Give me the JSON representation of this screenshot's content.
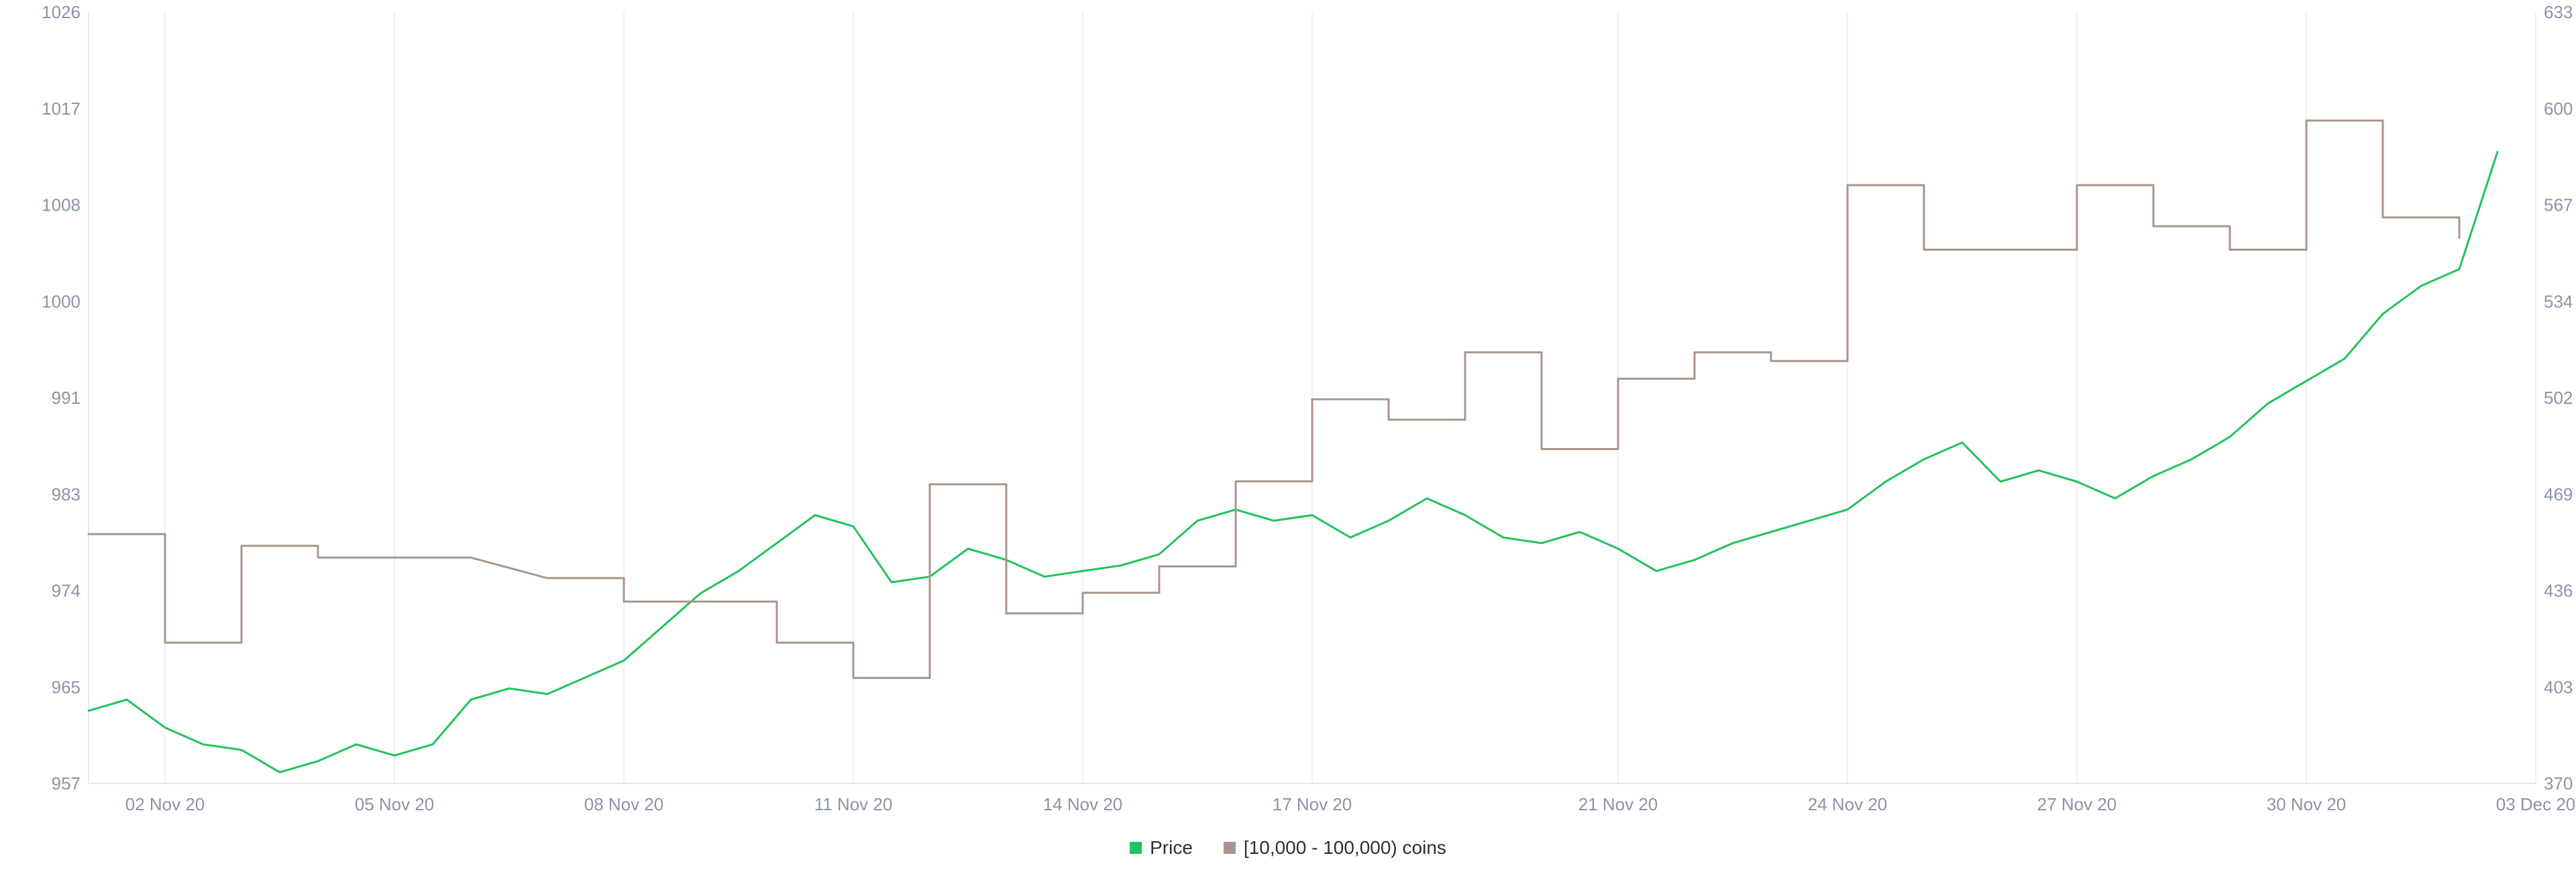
{
  "chart_data": {
    "type": "line",
    "title": "",
    "x_ticks": [
      "02 Nov 20",
      "05 Nov 20",
      "08 Nov 20",
      "11 Nov 20",
      "14 Nov 20",
      "17 Nov 20",
      "21 Nov 20",
      "24 Nov 20",
      "27 Nov 20",
      "30 Nov 20",
      "03 Dec 20"
    ],
    "x_range": [
      "2020-11-01",
      "2020-12-03"
    ],
    "y_left": {
      "ticks": [
        "1026",
        "1017",
        "1008",
        "1000",
        "991",
        "983",
        "974",
        "965",
        "957"
      ],
      "ylim": [
        957,
        1026
      ]
    },
    "y_right": {
      "ticks": [
        "633",
        "600",
        "567",
        "534",
        "502",
        "469",
        "436",
        "403",
        "370"
      ],
      "ylim": [
        370,
        633
      ]
    },
    "grid": {
      "horizontal": false,
      "vertical": true
    },
    "legend_position": "bottom-center",
    "series": [
      {
        "name": "Price",
        "axis": "left",
        "color": "#21c35a",
        "style": "line",
        "points": [
          [
            "2020-11-01",
            963.5
          ],
          [
            "2020-11-01 12:00",
            964.5
          ],
          [
            "2020-11-02",
            962.0
          ],
          [
            "2020-11-02 12:00",
            960.5
          ],
          [
            "2020-11-03",
            960.0
          ],
          [
            "2020-11-03 12:00",
            958.0
          ],
          [
            "2020-11-04",
            959.0
          ],
          [
            "2020-11-04 12:00",
            960.5
          ],
          [
            "2020-11-05",
            959.5
          ],
          [
            "2020-11-05 12:00",
            960.5
          ],
          [
            "2020-11-06",
            964.5
          ],
          [
            "2020-11-06 12:00",
            965.5
          ],
          [
            "2020-11-07",
            965.0
          ],
          [
            "2020-11-07 12:00",
            966.5
          ],
          [
            "2020-11-08",
            968.0
          ],
          [
            "2020-11-08 12:00",
            971.0
          ],
          [
            "2020-11-09",
            974.0
          ],
          [
            "2020-11-09 12:00",
            976.0
          ],
          [
            "2020-11-10",
            978.5
          ],
          [
            "2020-11-10 12:00",
            981.0
          ],
          [
            "2020-11-11",
            980.0
          ],
          [
            "2020-11-11 12:00",
            975.0
          ],
          [
            "2020-11-12",
            975.5
          ],
          [
            "2020-11-12 12:00",
            978.0
          ],
          [
            "2020-11-13",
            977.0
          ],
          [
            "2020-11-13 12:00",
            975.5
          ],
          [
            "2020-11-14",
            976.0
          ],
          [
            "2020-11-14 12:00",
            976.5
          ],
          [
            "2020-11-15",
            977.5
          ],
          [
            "2020-11-15 12:00",
            980.5
          ],
          [
            "2020-11-16",
            981.5
          ],
          [
            "2020-11-16 12:00",
            980.5
          ],
          [
            "2020-11-17",
            981.0
          ],
          [
            "2020-11-17 12:00",
            979.0
          ],
          [
            "2020-11-18",
            980.5
          ],
          [
            "2020-11-18 12:00",
            982.5
          ],
          [
            "2020-11-19",
            981.0
          ],
          [
            "2020-11-19 12:00",
            979.0
          ],
          [
            "2020-11-20",
            978.5
          ],
          [
            "2020-11-20 12:00",
            979.5
          ],
          [
            "2020-11-21",
            978.0
          ],
          [
            "2020-11-21 12:00",
            976.0
          ],
          [
            "2020-11-22",
            977.0
          ],
          [
            "2020-11-22 12:00",
            978.5
          ],
          [
            "2020-11-23",
            979.5
          ],
          [
            "2020-11-23 12:00",
            980.5
          ],
          [
            "2020-11-24",
            981.5
          ],
          [
            "2020-11-24 12:00",
            984.0
          ],
          [
            "2020-11-25",
            986.0
          ],
          [
            "2020-11-25 12:00",
            987.5
          ],
          [
            "2020-11-26",
            984.0
          ],
          [
            "2020-11-26 12:00",
            985.0
          ],
          [
            "2020-11-27",
            984.0
          ],
          [
            "2020-11-27 12:00",
            982.5
          ],
          [
            "2020-11-28",
            984.5
          ],
          [
            "2020-11-28 12:00",
            986.0
          ],
          [
            "2020-11-29",
            988.0
          ],
          [
            "2020-11-29 12:00",
            991.0
          ],
          [
            "2020-11-30",
            993.0
          ],
          [
            "2020-11-30 12:00",
            995.0
          ],
          [
            "2020-12-01",
            999.0
          ],
          [
            "2020-12-01 12:00",
            1001.5
          ],
          [
            "2020-12-02",
            1003.0
          ],
          [
            "2020-12-02 12:00",
            1013.5
          ]
        ]
      },
      {
        "name": "[10,000 - 100,000) coins",
        "axis": "right",
        "color": "#a9958b",
        "style": "step",
        "points": [
          [
            "2020-11-01",
            455
          ],
          [
            "2020-11-02",
            455
          ],
          [
            "2020-11-02",
            418
          ],
          [
            "2020-11-03",
            418
          ],
          [
            "2020-11-03",
            451
          ],
          [
            "2020-11-04",
            451
          ],
          [
            "2020-11-04",
            447
          ],
          [
            "2020-11-06",
            447
          ],
          [
            "2020-11-07",
            440
          ],
          [
            "2020-11-08",
            440
          ],
          [
            "2020-11-08",
            432
          ],
          [
            "2020-11-10",
            432
          ],
          [
            "2020-11-10",
            418
          ],
          [
            "2020-11-11",
            418
          ],
          [
            "2020-11-11",
            406
          ],
          [
            "2020-11-12",
            406
          ],
          [
            "2020-11-12",
            472
          ],
          [
            "2020-11-13",
            472
          ],
          [
            "2020-11-13",
            428
          ],
          [
            "2020-11-14",
            428
          ],
          [
            "2020-11-14",
            435
          ],
          [
            "2020-11-15",
            435
          ],
          [
            "2020-11-15",
            444
          ],
          [
            "2020-11-16",
            444
          ],
          [
            "2020-11-16",
            473
          ],
          [
            "2020-11-17",
            473
          ],
          [
            "2020-11-17",
            501
          ],
          [
            "2020-11-18",
            501
          ],
          [
            "2020-11-18",
            494
          ],
          [
            "2020-11-19",
            494
          ],
          [
            "2020-11-19",
            517
          ],
          [
            "2020-11-20",
            517
          ],
          [
            "2020-11-20",
            484
          ],
          [
            "2020-11-21",
            484
          ],
          [
            "2020-11-21",
            508
          ],
          [
            "2020-11-22",
            508
          ],
          [
            "2020-11-22",
            517
          ],
          [
            "2020-11-23",
            517
          ],
          [
            "2020-11-23",
            514
          ],
          [
            "2020-11-24",
            514
          ],
          [
            "2020-11-24",
            574
          ],
          [
            "2020-11-25",
            574
          ],
          [
            "2020-11-25",
            552
          ],
          [
            "2020-11-27",
            552
          ],
          [
            "2020-11-27",
            574
          ],
          [
            "2020-11-28",
            574
          ],
          [
            "2020-11-28",
            560
          ],
          [
            "2020-11-29",
            560
          ],
          [
            "2020-11-29",
            552
          ],
          [
            "2020-11-30",
            552
          ],
          [
            "2020-11-30",
            596
          ],
          [
            "2020-12-01",
            596
          ],
          [
            "2020-12-01",
            563
          ],
          [
            "2020-12-02",
            563
          ],
          [
            "2020-12-02",
            556
          ]
        ]
      }
    ]
  },
  "legend": [
    {
      "label": "Price",
      "color": "#21c35a"
    },
    {
      "label": "[10,000 - 100,000) coins",
      "color": "#a9958b"
    }
  ]
}
